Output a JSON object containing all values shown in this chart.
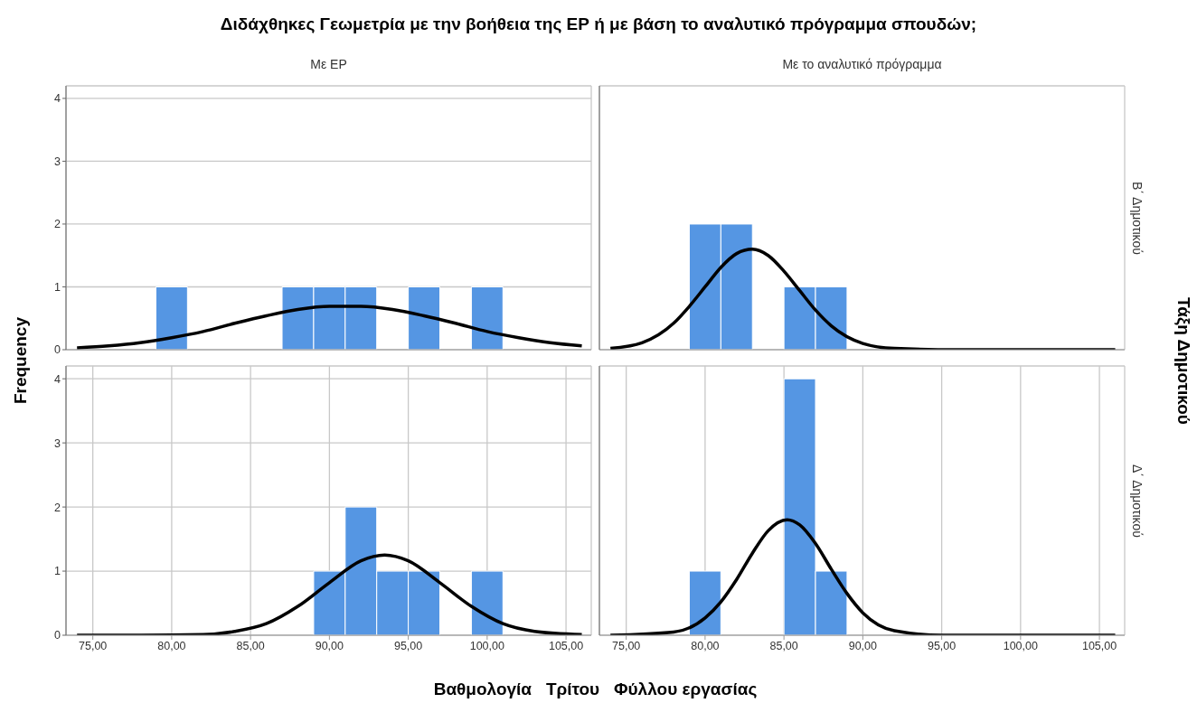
{
  "chart_data": [
    {
      "type": "histogram",
      "title": "Διδάχθηκες Γεωμετρία με την βοήθεια της ΕΡ ή με βάση το αναλυτικό πρόγραμμα σπουδών;",
      "subtitle": "Με ΕΡ",
      "ylabel": "Frequency",
      "grid": true,
      "tick_labels": "y",
      "xlim": [
        73.3,
        106.6
      ],
      "ylim": [
        0,
        4.2
      ],
      "xticks": [
        {
          "value": 75,
          "label": null
        },
        {
          "value": 80,
          "label": null
        },
        {
          "value": 85,
          "label": null
        },
        {
          "value": 90,
          "label": null
        },
        {
          "value": 95,
          "label": null
        },
        {
          "value": 100,
          "label": null
        },
        {
          "value": 105,
          "label": null
        }
      ],
      "yticks": [
        0,
        1,
        2,
        3,
        4
      ],
      "series": [
        {
          "color": "#5596e3",
          "bins": [
            79,
            81,
            83,
            85,
            87,
            89,
            91,
            93,
            95,
            97,
            99,
            101
          ],
          "values": [
            1,
            0,
            0,
            0,
            1,
            1,
            1,
            0,
            1,
            0,
            1
          ]
        },
        {
          "type": "line",
          "color": "#000000",
          "x": [
            74,
            76,
            78,
            80,
            82,
            84,
            86,
            88,
            90,
            92,
            94,
            96,
            98,
            100,
            102,
            104,
            106
          ],
          "values": [
            0.03,
            0.06,
            0.11,
            0.19,
            0.29,
            0.42,
            0.54,
            0.64,
            0.69,
            0.69,
            0.64,
            0.54,
            0.42,
            0.29,
            0.19,
            0.11,
            0.06
          ]
        }
      ]
    },
    {
      "type": "histogram",
      "subtitle": "Με το αναλυτικό πρόγραμμα",
      "y2label": "Β΄ Δημοτικού",
      "annotations": [
        "Τάξη Δημοτικού"
      ],
      "grid": true,
      "tick_labels": false,
      "xlim": [
        73.3,
        106.6
      ],
      "ylim": [
        0,
        4.2
      ],
      "xticks": [
        {
          "value": 75,
          "label": null
        },
        {
          "value": 80,
          "label": null
        },
        {
          "value": 85,
          "label": null
        },
        {
          "value": 90,
          "label": null
        },
        {
          "value": 95,
          "label": null
        },
        {
          "value": 100,
          "label": null
        },
        {
          "value": 105,
          "label": null
        }
      ],
      "yticks": [
        0,
        1,
        2,
        3,
        4
      ],
      "series": [
        {
          "color": "#5596e3",
          "bins": [
            79,
            81,
            83,
            85,
            87,
            89
          ],
          "values": [
            2,
            2,
            0,
            1,
            1
          ]
        },
        {
          "type": "line",
          "color": "#000000",
          "x": [
            74,
            76,
            78,
            79,
            80,
            81,
            82,
            83,
            84,
            85,
            86,
            87,
            88,
            90,
            92,
            96,
            106
          ],
          "values": [
            0.02,
            0.11,
            0.42,
            0.69,
            1.0,
            1.31,
            1.53,
            1.6,
            1.5,
            1.25,
            0.94,
            0.63,
            0.38,
            0.1,
            0.02,
            0,
            0
          ]
        }
      ]
    },
    {
      "type": "histogram",
      "xlabel": "Βαθμολογία   Τρίτου   Φύλλου εργασίας",
      "grid": true,
      "xlim": [
        73.3,
        106.6
      ],
      "ylim": [
        0,
        4.2
      ],
      "xticks": [
        {
          "value": 75,
          "label": "75,00"
        },
        {
          "value": 80,
          "label": "80,00"
        },
        {
          "value": 85,
          "label": "85,00"
        },
        {
          "value": 90,
          "label": "90,00"
        },
        {
          "value": 95,
          "label": "95,00"
        },
        {
          "value": 100,
          "label": "100,00"
        },
        {
          "value": 105,
          "label": "105,00"
        }
      ],
      "yticks": [
        0,
        1,
        2,
        3,
        4
      ],
      "series": [
        {
          "color": "#5596e3",
          "bins": [
            89,
            91,
            93,
            95,
            97,
            99,
            101
          ],
          "values": [
            1,
            2,
            1,
            1,
            0,
            1
          ]
        },
        {
          "type": "line",
          "color": "#000000",
          "x": [
            74,
            78,
            82,
            84,
            86,
            88,
            90,
            92,
            93.5,
            95,
            97,
            99,
            101,
            103,
            106
          ],
          "values": [
            0,
            0,
            0.01,
            0.06,
            0.18,
            0.45,
            0.82,
            1.16,
            1.25,
            1.16,
            0.82,
            0.45,
            0.18,
            0.06,
            0.01
          ]
        }
      ]
    },
    {
      "type": "histogram",
      "y2label": "Δ΄ Δημοτικού",
      "grid": true,
      "tick_labels": "x",
      "xlim": [
        73.3,
        106.6
      ],
      "ylim": [
        0,
        4.2
      ],
      "xticks": [
        {
          "value": 75,
          "label": "75,00"
        },
        {
          "value": 80,
          "label": "80,00"
        },
        {
          "value": 85,
          "label": "85,00"
        },
        {
          "value": 90,
          "label": "90,00"
        },
        {
          "value": 95,
          "label": "95,00"
        },
        {
          "value": 100,
          "label": "100,00"
        },
        {
          "value": 105,
          "label": "105,00"
        }
      ],
      "yticks": [
        0,
        1,
        2,
        3,
        4
      ],
      "series": [
        {
          "color": "#5596e3",
          "bins": [
            79,
            81,
            83,
            85,
            87,
            89
          ],
          "values": [
            1,
            0,
            0,
            4,
            1
          ]
        },
        {
          "type": "line",
          "color": "#000000",
          "x": [
            74,
            78,
            80,
            81,
            82,
            83,
            84,
            85.2,
            86,
            87,
            88,
            89,
            90,
            92,
            95,
            106
          ],
          "values": [
            0,
            0.05,
            0.27,
            0.52,
            0.87,
            1.28,
            1.63,
            1.8,
            1.72,
            1.43,
            1.03,
            0.65,
            0.35,
            0.07,
            0,
            0
          ]
        }
      ]
    }
  ]
}
